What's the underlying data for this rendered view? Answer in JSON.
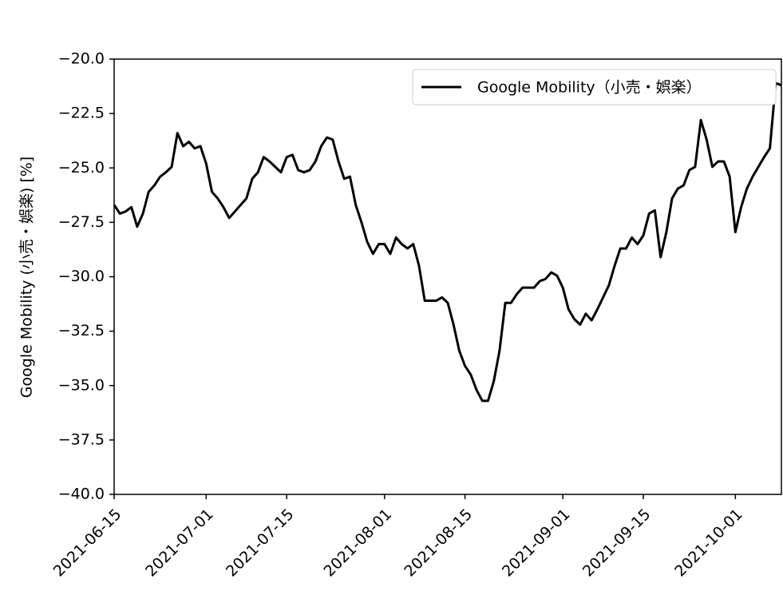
{
  "chart_data": {
    "type": "line",
    "ylabel": "Google Mobility (小売・娯楽) [%]",
    "x": [
      "2021-06-15",
      "2021-06-16",
      "2021-06-17",
      "2021-06-18",
      "2021-06-19",
      "2021-06-20",
      "2021-06-21",
      "2021-06-22",
      "2021-06-23",
      "2021-06-24",
      "2021-06-25",
      "2021-06-26",
      "2021-06-27",
      "2021-06-28",
      "2021-06-29",
      "2021-06-30",
      "2021-07-01",
      "2021-07-02",
      "2021-07-03",
      "2021-07-04",
      "2021-07-05",
      "2021-07-06",
      "2021-07-07",
      "2021-07-08",
      "2021-07-09",
      "2021-07-10",
      "2021-07-11",
      "2021-07-12",
      "2021-07-13",
      "2021-07-14",
      "2021-07-15",
      "2021-07-16",
      "2021-07-17",
      "2021-07-18",
      "2021-07-19",
      "2021-07-20",
      "2021-07-21",
      "2021-07-22",
      "2021-07-23",
      "2021-07-24",
      "2021-07-25",
      "2021-07-26",
      "2021-07-27",
      "2021-07-28",
      "2021-07-29",
      "2021-07-30",
      "2021-07-31",
      "2021-08-01",
      "2021-08-02",
      "2021-08-03",
      "2021-08-04",
      "2021-08-05",
      "2021-08-06",
      "2021-08-07",
      "2021-08-08",
      "2021-08-09",
      "2021-08-10",
      "2021-08-11",
      "2021-08-12",
      "2021-08-13",
      "2021-08-14",
      "2021-08-15",
      "2021-08-16",
      "2021-08-17",
      "2021-08-18",
      "2021-08-19",
      "2021-08-20",
      "2021-08-21",
      "2021-08-22",
      "2021-08-23",
      "2021-08-24",
      "2021-08-25",
      "2021-08-26",
      "2021-08-27",
      "2021-08-28",
      "2021-08-29",
      "2021-08-30",
      "2021-08-31",
      "2021-09-01",
      "2021-09-02",
      "2021-09-03",
      "2021-09-04",
      "2021-09-05",
      "2021-09-06",
      "2021-09-07",
      "2021-09-08",
      "2021-09-09",
      "2021-09-10",
      "2021-09-11",
      "2021-09-12",
      "2021-09-13",
      "2021-09-14",
      "2021-09-15",
      "2021-09-16",
      "2021-09-17",
      "2021-09-18",
      "2021-09-19",
      "2021-09-20",
      "2021-09-21",
      "2021-09-22",
      "2021-09-23",
      "2021-09-24",
      "2021-09-25",
      "2021-09-26",
      "2021-09-27",
      "2021-09-28",
      "2021-09-29",
      "2021-09-30",
      "2021-10-01",
      "2021-10-02",
      "2021-10-03",
      "2021-10-04",
      "2021-10-05",
      "2021-10-06",
      "2021-10-07",
      "2021-10-08",
      "2021-10-09"
    ],
    "series": [
      {
        "name": "Google Mobility（小売・娯楽）",
        "color": "#000000",
        "values": [
          -26.7,
          -27.1,
          -27.0,
          -26.8,
          -27.7,
          -27.1,
          -26.1,
          -25.8,
          -25.4,
          -25.2,
          -24.95,
          -23.4,
          -24.0,
          -23.8,
          -24.1,
          -24.0,
          -24.8,
          -26.1,
          -26.4,
          -26.8,
          -27.3,
          -27.0,
          -26.7,
          -26.4,
          -25.5,
          -25.2,
          -24.5,
          -24.7,
          -24.95,
          -25.2,
          -24.5,
          -24.4,
          -25.1,
          -25.2,
          -25.1,
          -24.7,
          -24.0,
          -23.6,
          -23.7,
          -24.7,
          -25.5,
          -25.4,
          -26.7,
          -27.5,
          -28.4,
          -28.95,
          -28.5,
          -28.5,
          -28.95,
          -28.2,
          -28.5,
          -28.7,
          -28.5,
          -29.5,
          -31.1,
          -31.1,
          -31.1,
          -30.95,
          -31.2,
          -32.2,
          -33.4,
          -34.1,
          -34.5,
          -35.2,
          -35.7,
          -35.7,
          -34.8,
          -33.4,
          -31.2,
          -31.2,
          -30.8,
          -30.5,
          -30.5,
          -30.5,
          -30.2,
          -30.1,
          -29.8,
          -29.95,
          -30.5,
          -31.5,
          -31.95,
          -32.2,
          -31.7,
          -32.0,
          -31.5,
          -30.95,
          -30.4,
          -29.5,
          -28.7,
          -28.7,
          -28.2,
          -28.5,
          -28.1,
          -27.1,
          -26.95,
          -29.1,
          -27.95,
          -26.4,
          -25.95,
          -25.8,
          -25.1,
          -24.95,
          -22.8,
          -23.7,
          -24.95,
          -24.7,
          -24.7,
          -25.4,
          -27.95,
          -26.8,
          -25.95,
          -25.4,
          -24.95,
          -24.5,
          -24.1,
          -21.1,
          -21.2
        ]
      }
    ],
    "xlim": [
      "2021-06-15",
      "2021-10-09"
    ],
    "xticks": [
      "2021-06-15",
      "2021-07-01",
      "2021-07-15",
      "2021-08-01",
      "2021-08-15",
      "2021-09-01",
      "2021-09-15",
      "2021-10-01"
    ],
    "ylim": [
      -40,
      -20
    ],
    "yticks": [
      {
        "value": -40,
        "label": "−40.0"
      },
      {
        "value": -37.5,
        "label": "−37.5"
      },
      {
        "value": -35,
        "label": "−35.0"
      },
      {
        "value": -32.5,
        "label": "−32.5"
      },
      {
        "value": -30,
        "label": "−30.0"
      },
      {
        "value": -27.5,
        "label": "−27.5"
      },
      {
        "value": -25,
        "label": "−25.0"
      },
      {
        "value": -22.5,
        "label": "−22.5"
      },
      {
        "value": -20,
        "label": "−20.0"
      }
    ],
    "legend": "upper right"
  }
}
